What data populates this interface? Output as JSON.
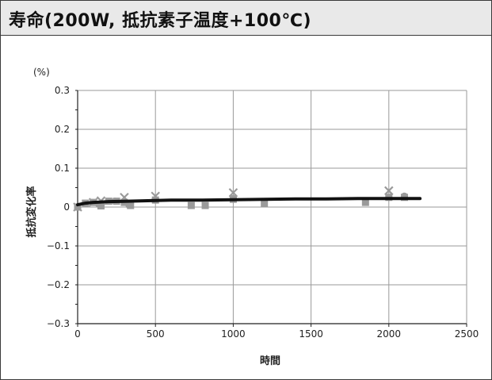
{
  "title": "寿命(200W, 抵抗素子温度+100℃)",
  "chart_data": {
    "type": "scatter",
    "xlabel": "時間",
    "ylabel": "抵抗変化率",
    "yunit": "(%)",
    "xlim": [
      0,
      2500
    ],
    "ylim": [
      -0.3,
      0.3
    ],
    "xticks": [
      "0",
      "500",
      "1000",
      "1500",
      "2000",
      "2500"
    ],
    "yticks": [
      "0.3",
      "0.2",
      "0.1",
      "0",
      "−0.1",
      "−0.2",
      "−0.3"
    ],
    "grid": true,
    "legend": "none",
    "series": [
      {
        "marker": "x",
        "color": "#9a9a9a",
        "x": [
          0,
          100,
          150,
          300,
          500,
          1000,
          2000
        ],
        "y": [
          0.0,
          0.012,
          0.016,
          0.025,
          0.028,
          0.037,
          0.042
        ]
      },
      {
        "marker": "square",
        "color": "#9a9a9a",
        "x": [
          0,
          50,
          100,
          150,
          200,
          250,
          300,
          340,
          500,
          730,
          820,
          1000,
          1200,
          1850,
          2000,
          2100
        ],
        "y": [
          0.0,
          0.01,
          0.012,
          0.003,
          0.015,
          0.015,
          0.012,
          0.004,
          0.018,
          0.004,
          0.004,
          0.02,
          0.01,
          0.012,
          0.025,
          0.025
        ]
      },
      {
        "marker": "circle",
        "color": "#9a9a9a",
        "x": [
          140,
          240,
          330,
          1000,
          2100
        ],
        "y": [
          0.006,
          0.015,
          0.005,
          0.022,
          0.028
        ]
      },
      {
        "marker": "line",
        "color": "#111111",
        "x": [
          0,
          50,
          100,
          200,
          300,
          400,
          500,
          600,
          800,
          1000,
          1200,
          1400,
          1600,
          1800,
          2000,
          2200
        ],
        "y": [
          0.006,
          0.01,
          0.012,
          0.014,
          0.015,
          0.016,
          0.017,
          0.018,
          0.018,
          0.019,
          0.02,
          0.021,
          0.021,
          0.022,
          0.022,
          0.022
        ]
      }
    ]
  }
}
